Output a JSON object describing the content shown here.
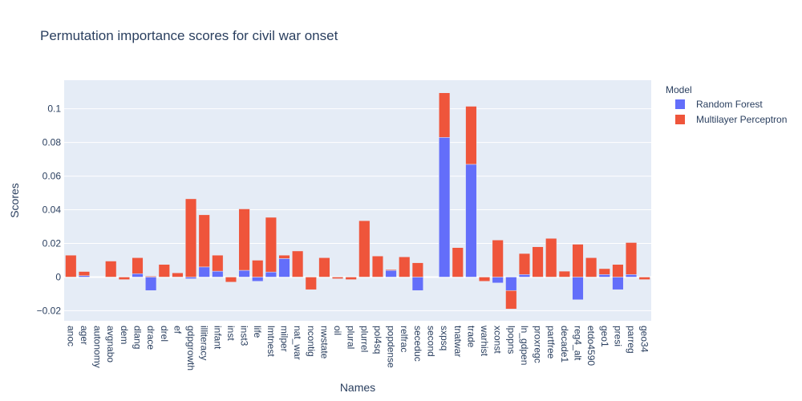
{
  "chart_data": {
    "type": "bar",
    "barmode": "relative",
    "title": "Permutation importance scores for civil war onset",
    "xlabel": "Names",
    "ylabel": "Scores",
    "ylim": [
      -0.026,
      0.117
    ],
    "yticks": [
      -0.02,
      0,
      0.02,
      0.04,
      0.06,
      0.08,
      0.1
    ],
    "ytick_labels": [
      "−0.02",
      "0",
      "0.02",
      "0.04",
      "0.06",
      "0.08",
      "0.1"
    ],
    "legend_title": "Model",
    "legend_position": "top-right",
    "categories": [
      "anoc",
      "ager",
      "autonomy",
      "avgnabo",
      "dem",
      "dlang",
      "drace",
      "drel",
      "ef",
      "gdpgrowth",
      "illiteracy",
      "infant",
      "inst",
      "inst3",
      "life",
      "lmtnest",
      "milper",
      "nat_war",
      "ncontig",
      "nwstate",
      "oil",
      "plural",
      "plurrel",
      "pol4sq",
      "popdense",
      "relfrac",
      "seceduc",
      "second",
      "sxpsq",
      "tnatwar",
      "trade",
      "warhist",
      "xconst",
      "lpopns",
      "ln_gdpen",
      "proxregc",
      "partfree",
      "decade1",
      "reg4_alt",
      "etdo4590",
      "geo1",
      "presi",
      "parreg",
      "geo34"
    ],
    "series": [
      {
        "name": "Random Forest",
        "color": "#636efa",
        "values": [
          0,
          0.0008,
          0,
          0,
          0,
          0.002,
          -0.008,
          0,
          0,
          -0.001,
          0.006,
          0.0035,
          0,
          0.004,
          -0.0025,
          0.003,
          0.011,
          0,
          0,
          0,
          0,
          0,
          0,
          0,
          0.004,
          0,
          -0.008,
          0,
          0.083,
          0,
          0.067,
          0,
          -0.0035,
          -0.008,
          0.0015,
          0,
          0,
          0,
          -0.0135,
          0,
          0.0015,
          -0.0075,
          0.0015,
          0
        ]
      },
      {
        "name": "Multilayer Perceptron",
        "color": "#ef553b",
        "values": [
          0.013,
          0.0025,
          0,
          0.0095,
          -0.0015,
          0.0095,
          0.0005,
          0.0075,
          0.0025,
          0.0465,
          0.031,
          0.0095,
          -0.003,
          0.0365,
          0.01,
          0.0325,
          0.002,
          0.0155,
          -0.0075,
          0.0115,
          -0.001,
          -0.0015,
          0.0335,
          0.0125,
          0.0005,
          0.012,
          0.0085,
          0,
          0.0265,
          0.0175,
          0.0345,
          -0.0025,
          0.022,
          -0.011,
          0.0125,
          0.018,
          0.023,
          0.0035,
          0.0195,
          0.0115,
          0.0035,
          0.0075,
          0.019,
          -0.0015
        ]
      }
    ]
  }
}
